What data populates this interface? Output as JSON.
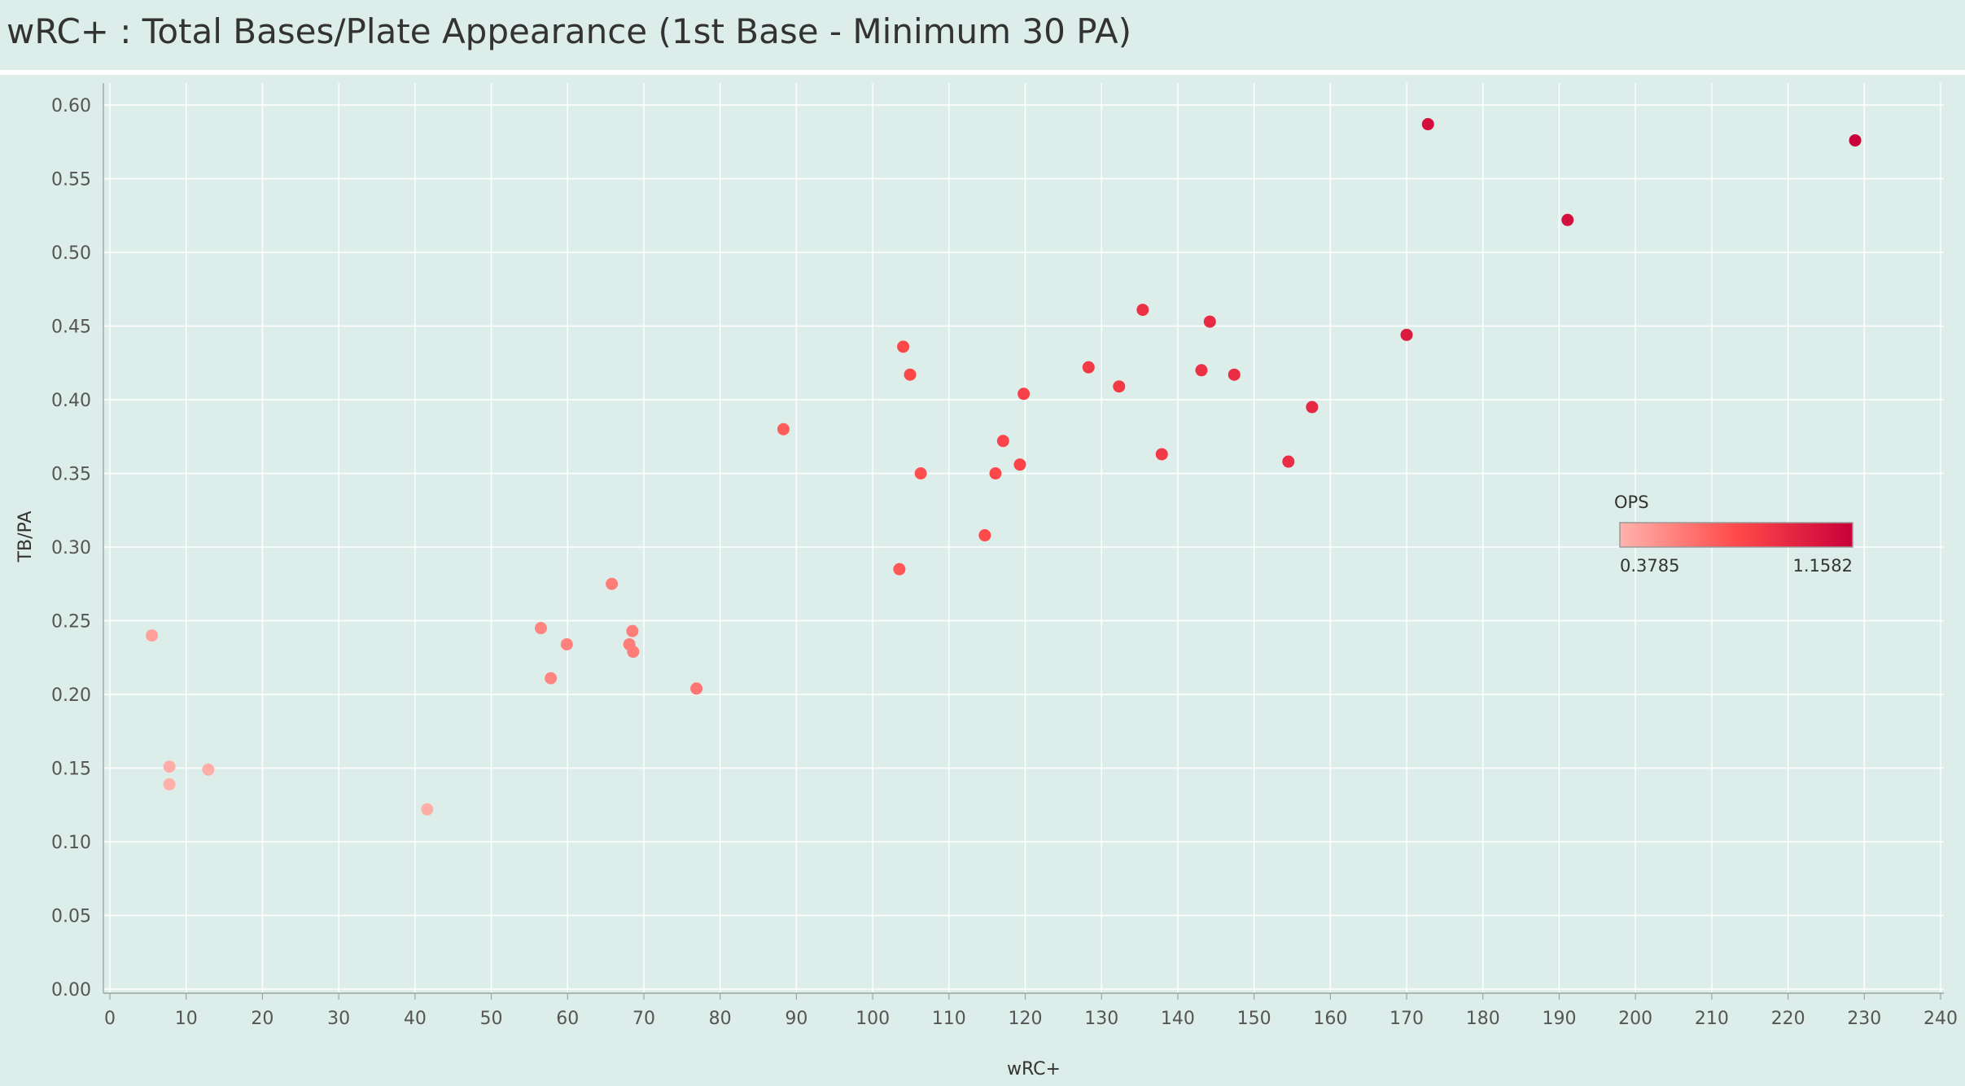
{
  "title": "wRC+ : Total Bases/Plate Appearance (1st Base - Minimum 30 PA)",
  "colors": {
    "background": "#ddeeea",
    "low": "#ffb3ac",
    "mid": "#ff4a4a",
    "high": "#c8003a"
  },
  "chart_data": {
    "type": "scatter",
    "title": "wRC+ : Total Bases/Plate Appearance (1st Base - Minimum 30 PA)",
    "xlabel": "wRC+",
    "ylabel": "TB/PA",
    "xlim": [
      0,
      240
    ],
    "ylim": [
      0,
      0.6
    ],
    "x_ticks": [
      "0",
      "10",
      "20",
      "30",
      "40",
      "50",
      "60",
      "70",
      "80",
      "90",
      "100",
      "110",
      "120",
      "130",
      "140",
      "150",
      "160",
      "170",
      "180",
      "190",
      "200",
      "210",
      "220",
      "230",
      "240"
    ],
    "y_ticks": [
      "0.00",
      "0.05",
      "0.10",
      "0.15",
      "0.20",
      "0.25",
      "0.30",
      "0.35",
      "0.40",
      "0.45",
      "0.50",
      "0.55",
      "0.60"
    ],
    "grid": true,
    "legend": {
      "title": "OPS",
      "min_label": "0.3785",
      "max_label": "1.1582",
      "placement": "right"
    },
    "points": [
      {
        "x": 5.5,
        "y": 0.24,
        "ops": 0.45
      },
      {
        "x": 7.8,
        "y": 0.151,
        "ops": 0.4
      },
      {
        "x": 7.8,
        "y": 0.139,
        "ops": 0.39
      },
      {
        "x": 12.9,
        "y": 0.149,
        "ops": 0.4
      },
      {
        "x": 41.6,
        "y": 0.122,
        "ops": 0.4
      },
      {
        "x": 56.5,
        "y": 0.245,
        "ops": 0.55
      },
      {
        "x": 57.8,
        "y": 0.211,
        "ops": 0.55
      },
      {
        "x": 59.9,
        "y": 0.234,
        "ops": 0.56
      },
      {
        "x": 65.8,
        "y": 0.275,
        "ops": 0.58
      },
      {
        "x": 68.1,
        "y": 0.234,
        "ops": 0.58
      },
      {
        "x": 68.5,
        "y": 0.243,
        "ops": 0.58
      },
      {
        "x": 68.6,
        "y": 0.229,
        "ops": 0.58
      },
      {
        "x": 76.9,
        "y": 0.204,
        "ops": 0.6
      },
      {
        "x": 88.3,
        "y": 0.38,
        "ops": 0.7
      },
      {
        "x": 103.5,
        "y": 0.285,
        "ops": 0.72
      },
      {
        "x": 104.0,
        "y": 0.436,
        "ops": 0.78
      },
      {
        "x": 104.9,
        "y": 0.417,
        "ops": 0.78
      },
      {
        "x": 106.3,
        "y": 0.35,
        "ops": 0.75
      },
      {
        "x": 114.7,
        "y": 0.308,
        "ops": 0.77
      },
      {
        "x": 116.1,
        "y": 0.35,
        "ops": 0.78
      },
      {
        "x": 117.1,
        "y": 0.372,
        "ops": 0.8
      },
      {
        "x": 119.3,
        "y": 0.356,
        "ops": 0.8
      },
      {
        "x": 119.8,
        "y": 0.404,
        "ops": 0.82
      },
      {
        "x": 128.3,
        "y": 0.422,
        "ops": 0.86
      },
      {
        "x": 132.3,
        "y": 0.409,
        "ops": 0.86
      },
      {
        "x": 135.4,
        "y": 0.461,
        "ops": 0.9
      },
      {
        "x": 137.9,
        "y": 0.363,
        "ops": 0.86
      },
      {
        "x": 143.1,
        "y": 0.42,
        "ops": 0.9
      },
      {
        "x": 144.2,
        "y": 0.453,
        "ops": 0.93
      },
      {
        "x": 147.4,
        "y": 0.417,
        "ops": 0.92
      },
      {
        "x": 154.5,
        "y": 0.358,
        "ops": 0.92
      },
      {
        "x": 157.6,
        "y": 0.395,
        "ops": 0.95
      },
      {
        "x": 170.0,
        "y": 0.444,
        "ops": 1.02
      },
      {
        "x": 172.8,
        "y": 0.587,
        "ops": 1.07
      },
      {
        "x": 191.1,
        "y": 0.522,
        "ops": 1.08
      },
      {
        "x": 228.8,
        "y": 0.576,
        "ops": 1.15
      }
    ]
  }
}
